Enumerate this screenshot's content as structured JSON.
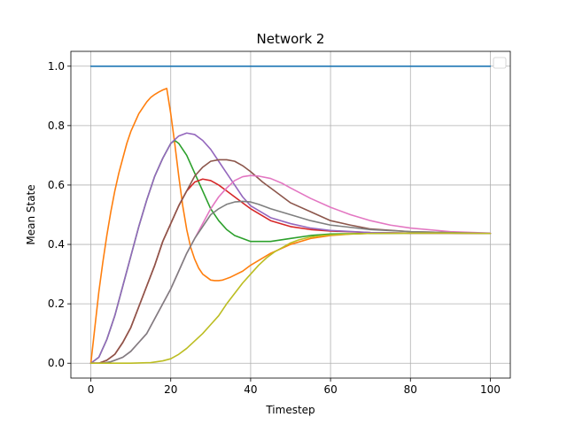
{
  "chart_data": {
    "type": "line",
    "title": "Network 2",
    "xlabel": "Timestep",
    "ylabel": "Mean State",
    "xlim": [
      -5,
      105
    ],
    "ylim": [
      -0.05,
      1.05
    ],
    "xticks": [
      0,
      20,
      40,
      60,
      80,
      100
    ],
    "yticks": [
      0.0,
      0.2,
      0.4,
      0.6,
      0.8,
      1.0
    ],
    "xtick_labels": [
      "0",
      "20",
      "40",
      "60",
      "80",
      "100"
    ],
    "ytick_labels": [
      "0.0",
      "0.2",
      "0.4",
      "0.6",
      "0.8",
      "1.0"
    ],
    "grid": true,
    "legend": {
      "placement": "upper right",
      "entries": []
    },
    "series": [
      {
        "color": "#1f77b4",
        "points": [
          [
            0,
            1.0
          ],
          [
            100,
            1.0
          ]
        ]
      },
      {
        "color": "#ff7f0e",
        "points": [
          [
            0,
            0.0
          ],
          [
            1,
            0.12
          ],
          [
            2,
            0.24
          ],
          [
            3,
            0.34
          ],
          [
            4,
            0.43
          ],
          [
            5,
            0.51
          ],
          [
            6,
            0.58
          ],
          [
            7,
            0.64
          ],
          [
            8,
            0.69
          ],
          [
            9,
            0.74
          ],
          [
            10,
            0.78
          ],
          [
            11,
            0.81
          ],
          [
            12,
            0.84
          ],
          [
            13,
            0.86
          ],
          [
            14,
            0.88
          ],
          [
            15,
            0.895
          ],
          [
            16,
            0.905
          ],
          [
            17,
            0.913
          ],
          [
            18,
            0.92
          ],
          [
            19,
            0.925
          ],
          [
            20,
            0.84
          ],
          [
            21,
            0.74
          ],
          [
            22,
            0.63
          ],
          [
            23,
            0.53
          ],
          [
            24,
            0.45
          ],
          [
            25,
            0.39
          ],
          [
            26,
            0.35
          ],
          [
            27,
            0.32
          ],
          [
            28,
            0.3
          ],
          [
            29,
            0.29
          ],
          [
            30,
            0.28
          ],
          [
            31,
            0.278
          ],
          [
            32,
            0.278
          ],
          [
            33,
            0.28
          ],
          [
            35,
            0.29
          ],
          [
            38,
            0.31
          ],
          [
            40,
            0.33
          ],
          [
            45,
            0.37
          ],
          [
            50,
            0.4
          ],
          [
            55,
            0.42
          ],
          [
            60,
            0.43
          ],
          [
            65,
            0.435
          ],
          [
            70,
            0.437
          ],
          [
            80,
            0.438
          ],
          [
            90,
            0.438
          ],
          [
            100,
            0.437
          ]
        ]
      },
      {
        "color": "#2ca02c",
        "points": [
          [
            0,
            0.0
          ],
          [
            2,
            0.02
          ],
          [
            4,
            0.08
          ],
          [
            6,
            0.16
          ],
          [
            8,
            0.26
          ],
          [
            10,
            0.36
          ],
          [
            12,
            0.46
          ],
          [
            14,
            0.55
          ],
          [
            16,
            0.63
          ],
          [
            18,
            0.69
          ],
          [
            20,
            0.74
          ],
          [
            21,
            0.75
          ],
          [
            22,
            0.74
          ],
          [
            24,
            0.7
          ],
          [
            26,
            0.64
          ],
          [
            28,
            0.58
          ],
          [
            30,
            0.52
          ],
          [
            32,
            0.48
          ],
          [
            34,
            0.45
          ],
          [
            36,
            0.43
          ],
          [
            38,
            0.42
          ],
          [
            40,
            0.41
          ],
          [
            45,
            0.41
          ],
          [
            50,
            0.42
          ],
          [
            55,
            0.43
          ],
          [
            60,
            0.435
          ],
          [
            70,
            0.437
          ],
          [
            80,
            0.438
          ],
          [
            90,
            0.438
          ],
          [
            100,
            0.437
          ]
        ]
      },
      {
        "color": "#d62728",
        "points": [
          [
            0,
            0.0
          ],
          [
            2,
            0.0
          ],
          [
            4,
            0.01
          ],
          [
            6,
            0.03
          ],
          [
            8,
            0.07
          ],
          [
            10,
            0.12
          ],
          [
            12,
            0.19
          ],
          [
            14,
            0.26
          ],
          [
            16,
            0.33
          ],
          [
            18,
            0.41
          ],
          [
            20,
            0.47
          ],
          [
            22,
            0.53
          ],
          [
            24,
            0.58
          ],
          [
            26,
            0.61
          ],
          [
            28,
            0.62
          ],
          [
            30,
            0.615
          ],
          [
            32,
            0.6
          ],
          [
            34,
            0.58
          ],
          [
            36,
            0.56
          ],
          [
            38,
            0.54
          ],
          [
            40,
            0.52
          ],
          [
            45,
            0.48
          ],
          [
            50,
            0.46
          ],
          [
            55,
            0.45
          ],
          [
            60,
            0.445
          ],
          [
            70,
            0.44
          ],
          [
            80,
            0.438
          ],
          [
            90,
            0.438
          ],
          [
            100,
            0.437
          ]
        ]
      },
      {
        "color": "#9467bd",
        "points": [
          [
            0,
            0.0
          ],
          [
            2,
            0.02
          ],
          [
            4,
            0.08
          ],
          [
            6,
            0.16
          ],
          [
            8,
            0.26
          ],
          [
            10,
            0.36
          ],
          [
            12,
            0.46
          ],
          [
            14,
            0.55
          ],
          [
            16,
            0.63
          ],
          [
            18,
            0.69
          ],
          [
            20,
            0.74
          ],
          [
            22,
            0.765
          ],
          [
            24,
            0.775
          ],
          [
            26,
            0.77
          ],
          [
            28,
            0.75
          ],
          [
            30,
            0.72
          ],
          [
            32,
            0.68
          ],
          [
            34,
            0.64
          ],
          [
            36,
            0.6
          ],
          [
            38,
            0.56
          ],
          [
            40,
            0.53
          ],
          [
            45,
            0.49
          ],
          [
            50,
            0.47
          ],
          [
            55,
            0.455
          ],
          [
            60,
            0.447
          ],
          [
            70,
            0.44
          ],
          [
            80,
            0.438
          ],
          [
            90,
            0.438
          ],
          [
            100,
            0.437
          ]
        ]
      },
      {
        "color": "#8c564b",
        "points": [
          [
            0,
            0.0
          ],
          [
            2,
            0.0
          ],
          [
            4,
            0.01
          ],
          [
            6,
            0.03
          ],
          [
            8,
            0.07
          ],
          [
            10,
            0.12
          ],
          [
            12,
            0.19
          ],
          [
            14,
            0.26
          ],
          [
            16,
            0.33
          ],
          [
            18,
            0.41
          ],
          [
            20,
            0.47
          ],
          [
            22,
            0.53
          ],
          [
            24,
            0.58
          ],
          [
            26,
            0.63
          ],
          [
            28,
            0.66
          ],
          [
            30,
            0.68
          ],
          [
            32,
            0.685
          ],
          [
            34,
            0.685
          ],
          [
            36,
            0.68
          ],
          [
            38,
            0.665
          ],
          [
            40,
            0.645
          ],
          [
            43,
            0.61
          ],
          [
            46,
            0.58
          ],
          [
            50,
            0.54
          ],
          [
            55,
            0.51
          ],
          [
            60,
            0.48
          ],
          [
            65,
            0.465
          ],
          [
            70,
            0.452
          ],
          [
            80,
            0.443
          ],
          [
            90,
            0.44
          ],
          [
            100,
            0.437
          ]
        ]
      },
      {
        "color": "#e377c2",
        "points": [
          [
            0,
            0.0
          ],
          [
            3,
            0.0
          ],
          [
            5,
            0.005
          ],
          [
            8,
            0.02
          ],
          [
            10,
            0.04
          ],
          [
            12,
            0.07
          ],
          [
            14,
            0.1
          ],
          [
            16,
            0.15
          ],
          [
            18,
            0.2
          ],
          [
            20,
            0.25
          ],
          [
            22,
            0.31
          ],
          [
            24,
            0.37
          ],
          [
            26,
            0.42
          ],
          [
            28,
            0.47
          ],
          [
            30,
            0.52
          ],
          [
            32,
            0.56
          ],
          [
            34,
            0.59
          ],
          [
            36,
            0.615
          ],
          [
            38,
            0.628
          ],
          [
            40,
            0.632
          ],
          [
            42,
            0.63
          ],
          [
            45,
            0.622
          ],
          [
            48,
            0.605
          ],
          [
            50,
            0.59
          ],
          [
            55,
            0.555
          ],
          [
            60,
            0.525
          ],
          [
            65,
            0.5
          ],
          [
            70,
            0.48
          ],
          [
            75,
            0.465
          ],
          [
            80,
            0.455
          ],
          [
            90,
            0.443
          ],
          [
            100,
            0.438
          ]
        ]
      },
      {
        "color": "#7f7f7f",
        "points": [
          [
            0,
            0.0
          ],
          [
            3,
            0.0
          ],
          [
            5,
            0.005
          ],
          [
            8,
            0.02
          ],
          [
            10,
            0.04
          ],
          [
            12,
            0.07
          ],
          [
            14,
            0.1
          ],
          [
            16,
            0.15
          ],
          [
            18,
            0.2
          ],
          [
            20,
            0.25
          ],
          [
            22,
            0.31
          ],
          [
            24,
            0.37
          ],
          [
            26,
            0.42
          ],
          [
            28,
            0.46
          ],
          [
            30,
            0.5
          ],
          [
            32,
            0.52
          ],
          [
            34,
            0.535
          ],
          [
            36,
            0.543
          ],
          [
            38,
            0.545
          ],
          [
            40,
            0.543
          ],
          [
            42,
            0.535
          ],
          [
            45,
            0.52
          ],
          [
            50,
            0.5
          ],
          [
            55,
            0.48
          ],
          [
            60,
            0.465
          ],
          [
            70,
            0.45
          ],
          [
            80,
            0.443
          ],
          [
            90,
            0.44
          ],
          [
            100,
            0.437
          ]
        ]
      },
      {
        "color": "#bcbd22",
        "points": [
          [
            0,
            0.0
          ],
          [
            5,
            0.0
          ],
          [
            10,
            0.0
          ],
          [
            15,
            0.002
          ],
          [
            18,
            0.008
          ],
          [
            20,
            0.015
          ],
          [
            22,
            0.03
          ],
          [
            24,
            0.05
          ],
          [
            26,
            0.075
          ],
          [
            28,
            0.1
          ],
          [
            30,
            0.13
          ],
          [
            32,
            0.16
          ],
          [
            34,
            0.2
          ],
          [
            36,
            0.235
          ],
          [
            38,
            0.27
          ],
          [
            40,
            0.3
          ],
          [
            42,
            0.33
          ],
          [
            44,
            0.355
          ],
          [
            46,
            0.375
          ],
          [
            48,
            0.39
          ],
          [
            50,
            0.405
          ],
          [
            52,
            0.415
          ],
          [
            55,
            0.425
          ],
          [
            58,
            0.43
          ],
          [
            60,
            0.432
          ],
          [
            65,
            0.435
          ],
          [
            70,
            0.437
          ],
          [
            80,
            0.438
          ],
          [
            90,
            0.438
          ],
          [
            100,
            0.437
          ]
        ]
      }
    ]
  }
}
